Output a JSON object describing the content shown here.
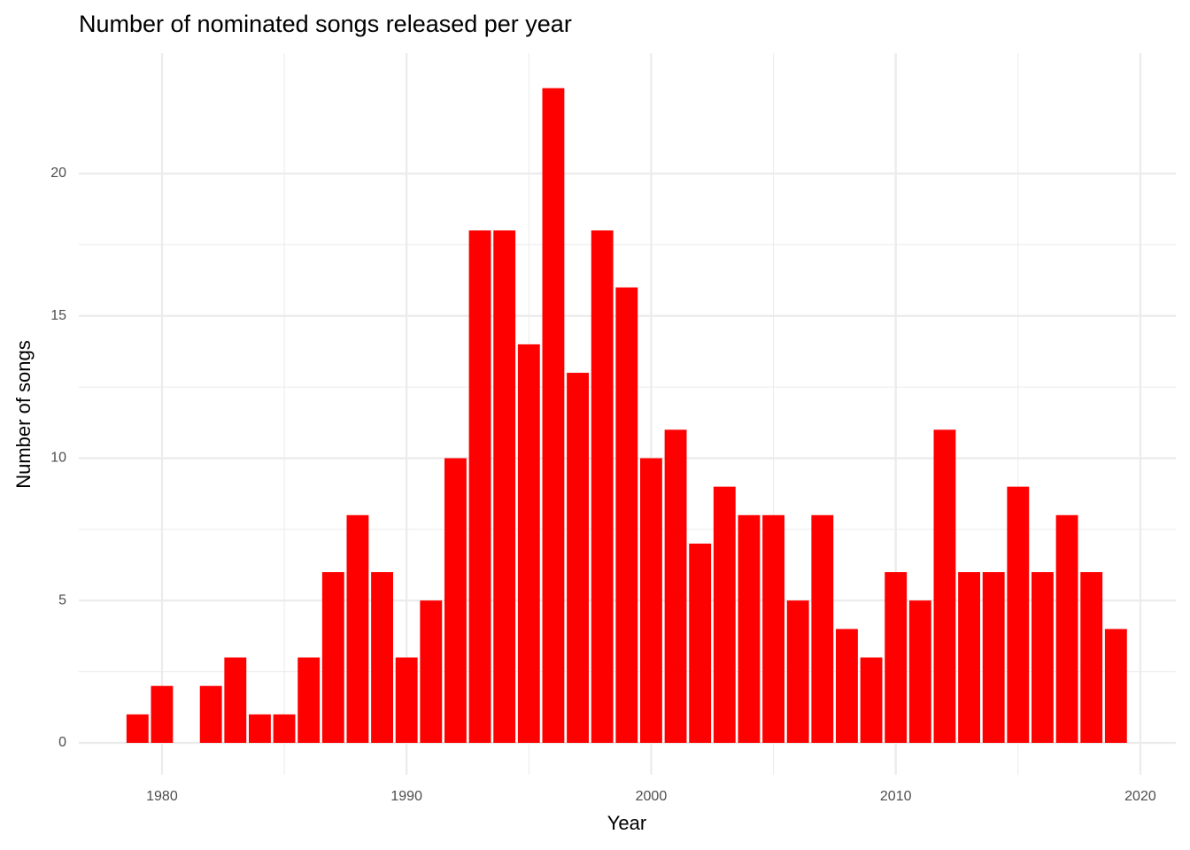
{
  "chart_data": {
    "type": "bar",
    "title": "Number of nominated songs released per year",
    "x_label": "Year",
    "y_label": "Number of songs",
    "x": [
      1979,
      1980,
      1982,
      1983,
      1984,
      1985,
      1986,
      1987,
      1988,
      1989,
      1990,
      1991,
      1992,
      1993,
      1994,
      1995,
      1996,
      1997,
      1998,
      1999,
      2000,
      2001,
      2002,
      2003,
      2004,
      2005,
      2006,
      2007,
      2008,
      2009,
      2010,
      2011,
      2012,
      2013,
      2014,
      2015,
      2016,
      2017,
      2018,
      2019
    ],
    "values": [
      1,
      2,
      2,
      3,
      1,
      1,
      3,
      6,
      8,
      6,
      3,
      5,
      10,
      18,
      18,
      14,
      23,
      13,
      18,
      16,
      10,
      11,
      7,
      9,
      8,
      8,
      5,
      8,
      4,
      3,
      6,
      5,
      11,
      6,
      6,
      9,
      6,
      8,
      6,
      4
    ],
    "color": "#fe0000",
    "xlim": [
      1976.6,
      2021.45
    ],
    "xticks": [
      1980,
      1990,
      2000,
      2010,
      2020
    ],
    "ylim": [
      -1.12,
      24.23
    ],
    "yticks": [
      0,
      5,
      10,
      15,
      20
    ],
    "grid": true
  }
}
